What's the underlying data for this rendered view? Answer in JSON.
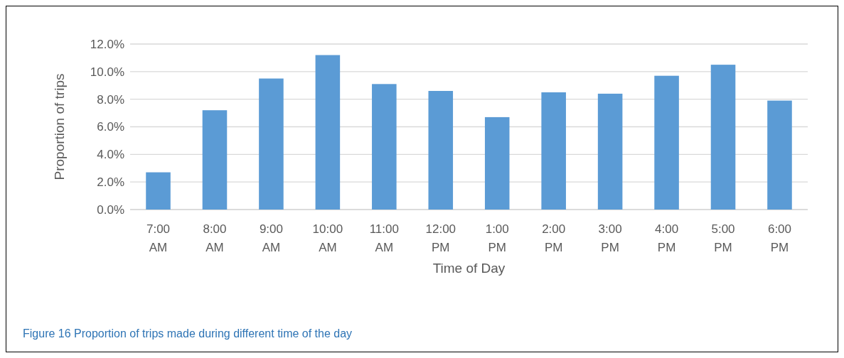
{
  "chart_data": {
    "type": "bar",
    "xlabel": "Time of Day",
    "ylabel": "Proportion of trips",
    "categories": [
      "7:00 AM",
      "8:00 AM",
      "9:00 AM",
      "10:00 AM",
      "11:00 AM",
      "12:00 PM",
      "1:00 PM",
      "2:00 PM",
      "3:00 PM",
      "4:00 PM",
      "5:00 PM",
      "6:00 PM"
    ],
    "values": [
      2.7,
      7.2,
      9.5,
      11.2,
      9.1,
      8.6,
      6.7,
      8.5,
      8.4,
      9.7,
      10.5,
      7.9
    ],
    "color": "#5b9bd5",
    "ylim": [
      0,
      12
    ],
    "yticks": [
      {
        "value": 0,
        "label": "0.0%"
      },
      {
        "value": 2,
        "label": "2.0%"
      },
      {
        "value": 4,
        "label": "4.0%"
      },
      {
        "value": 6,
        "label": "6.0%"
      },
      {
        "value": 8,
        "label": "8.0%"
      },
      {
        "value": 10,
        "label": "10.0%"
      },
      {
        "value": 12,
        "label": "12.0%"
      }
    ],
    "grid": "y",
    "annotations": [
      "Figure 16 Proportion of trips made during different time of the day"
    ]
  }
}
